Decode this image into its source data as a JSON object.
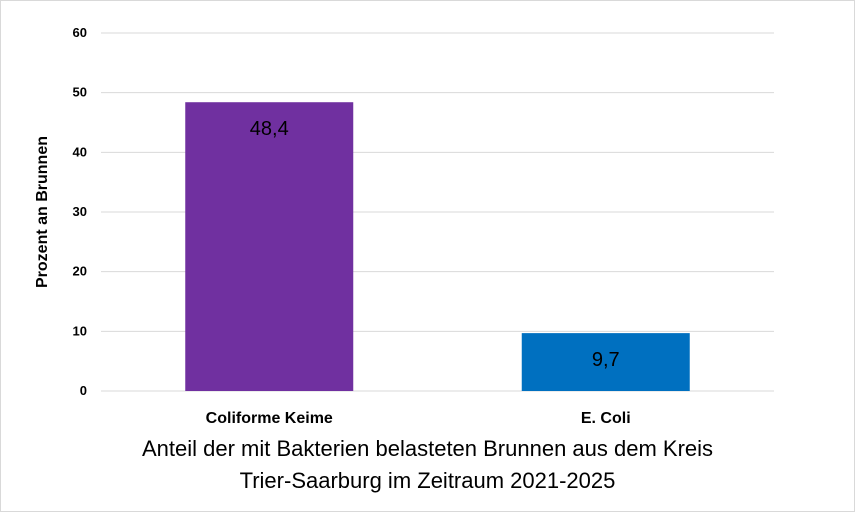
{
  "chart_data": {
    "type": "bar",
    "categories": [
      "Coliforme Keime",
      "E. Coli"
    ],
    "values": [
      48.4,
      9.7
    ],
    "data_labels": [
      "48,4",
      "9,7"
    ],
    "colors": [
      "#7030A0",
      "#0070C0"
    ],
    "title_lines": [
      "Anteil der mit Bakterien belasteten Brunnen aus dem Kreis",
      "Trier-Saarburg im Zeitraum 2021-2025"
    ],
    "xlabel": "",
    "ylabel": "Prozent an Brunnen",
    "ylim": [
      0,
      60
    ],
    "yticks": [
      0,
      10,
      20,
      30,
      40,
      50,
      60
    ],
    "grid": true,
    "legend": "none"
  }
}
